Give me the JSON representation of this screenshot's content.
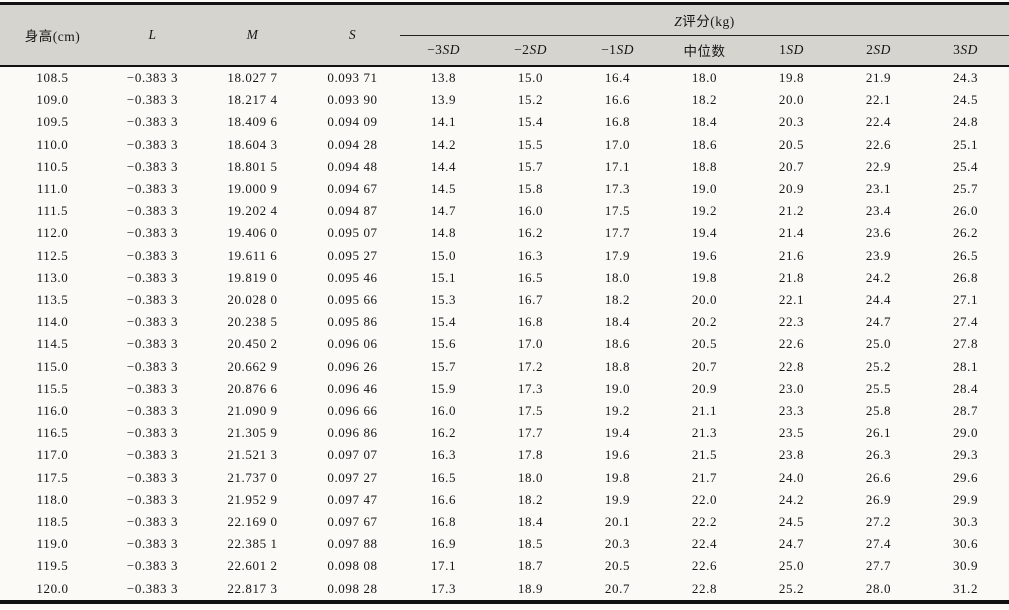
{
  "colors": {
    "header_bg": "#d5d4cf",
    "paper": "#fbfaf6",
    "ink": "#161616",
    "rule": "#111111"
  },
  "table": {
    "headers": {
      "height": "身高(cm)",
      "l": "L",
      "m": "M",
      "s": "S",
      "z_group": {
        "italic_part": "Z",
        "text_part": "评分(kg)"
      },
      "sd_columns": [
        {
          "prefix": "−3",
          "italic": "SD"
        },
        {
          "prefix": "−2",
          "italic": "SD"
        },
        {
          "prefix": "−1",
          "italic": "SD"
        },
        {
          "prefix": "中位数",
          "italic": ""
        },
        {
          "prefix": "1",
          "italic": "SD"
        },
        {
          "prefix": "2",
          "italic": "SD"
        },
        {
          "prefix": "3",
          "italic": "SD"
        }
      ]
    },
    "rows": [
      [
        "108.5",
        "−0.383 3",
        "18.027 7",
        "0.093 71",
        "13.8",
        "15.0",
        "16.4",
        "18.0",
        "19.8",
        "21.9",
        "24.3"
      ],
      [
        "109.0",
        "−0.383 3",
        "18.217 4",
        "0.093 90",
        "13.9",
        "15.2",
        "16.6",
        "18.2",
        "20.0",
        "22.1",
        "24.5"
      ],
      [
        "109.5",
        "−0.383 3",
        "18.409 6",
        "0.094 09",
        "14.1",
        "15.4",
        "16.8",
        "18.4",
        "20.3",
        "22.4",
        "24.8"
      ],
      [
        "110.0",
        "−0.383 3",
        "18.604 3",
        "0.094 28",
        "14.2",
        "15.5",
        "17.0",
        "18.6",
        "20.5",
        "22.6",
        "25.1"
      ],
      [
        "110.5",
        "−0.383 3",
        "18.801 5",
        "0.094 48",
        "14.4",
        "15.7",
        "17.1",
        "18.8",
        "20.7",
        "22.9",
        "25.4"
      ],
      [
        "111.0",
        "−0.383 3",
        "19.000 9",
        "0.094 67",
        "14.5",
        "15.8",
        "17.3",
        "19.0",
        "20.9",
        "23.1",
        "25.7"
      ],
      [
        "111.5",
        "−0.383 3",
        "19.202 4",
        "0.094 87",
        "14.7",
        "16.0",
        "17.5",
        "19.2",
        "21.2",
        "23.4",
        "26.0"
      ],
      [
        "112.0",
        "−0.383 3",
        "19.406 0",
        "0.095 07",
        "14.8",
        "16.2",
        "17.7",
        "19.4",
        "21.4",
        "23.6",
        "26.2"
      ],
      [
        "112.5",
        "−0.383 3",
        "19.611 6",
        "0.095 27",
        "15.0",
        "16.3",
        "17.9",
        "19.6",
        "21.6",
        "23.9",
        "26.5"
      ],
      [
        "113.0",
        "−0.383 3",
        "19.819 0",
        "0.095 46",
        "15.1",
        "16.5",
        "18.0",
        "19.8",
        "21.8",
        "24.2",
        "26.8"
      ],
      [
        "113.5",
        "−0.383 3",
        "20.028 0",
        "0.095 66",
        "15.3",
        "16.7",
        "18.2",
        "20.0",
        "22.1",
        "24.4",
        "27.1"
      ],
      [
        "114.0",
        "−0.383 3",
        "20.238 5",
        "0.095 86",
        "15.4",
        "16.8",
        "18.4",
        "20.2",
        "22.3",
        "24.7",
        "27.4"
      ],
      [
        "114.5",
        "−0.383 3",
        "20.450 2",
        "0.096 06",
        "15.6",
        "17.0",
        "18.6",
        "20.5",
        "22.6",
        "25.0",
        "27.8"
      ],
      [
        "115.0",
        "−0.383 3",
        "20.662 9",
        "0.096 26",
        "15.7",
        "17.2",
        "18.8",
        "20.7",
        "22.8",
        "25.2",
        "28.1"
      ],
      [
        "115.5",
        "−0.383 3",
        "20.876 6",
        "0.096 46",
        "15.9",
        "17.3",
        "19.0",
        "20.9",
        "23.0",
        "25.5",
        "28.4"
      ],
      [
        "116.0",
        "−0.383 3",
        "21.090 9",
        "0.096 66",
        "16.0",
        "17.5",
        "19.2",
        "21.1",
        "23.3",
        "25.8",
        "28.7"
      ],
      [
        "116.5",
        "−0.383 3",
        "21.305 9",
        "0.096 86",
        "16.2",
        "17.7",
        "19.4",
        "21.3",
        "23.5",
        "26.1",
        "29.0"
      ],
      [
        "117.0",
        "−0.383 3",
        "21.521 3",
        "0.097 07",
        "16.3",
        "17.8",
        "19.6",
        "21.5",
        "23.8",
        "26.3",
        "29.3"
      ],
      [
        "117.5",
        "−0.383 3",
        "21.737 0",
        "0.097 27",
        "16.5",
        "18.0",
        "19.8",
        "21.7",
        "24.0",
        "26.6",
        "29.6"
      ],
      [
        "118.0",
        "−0.383 3",
        "21.952 9",
        "0.097 47",
        "16.6",
        "18.2",
        "19.9",
        "22.0",
        "24.2",
        "26.9",
        "29.9"
      ],
      [
        "118.5",
        "−0.383 3",
        "22.169 0",
        "0.097 67",
        "16.8",
        "18.4",
        "20.1",
        "22.2",
        "24.5",
        "27.2",
        "30.3"
      ],
      [
        "119.0",
        "−0.383 3",
        "22.385 1",
        "0.097 88",
        "16.9",
        "18.5",
        "20.3",
        "22.4",
        "24.7",
        "27.4",
        "30.6"
      ],
      [
        "119.5",
        "−0.383 3",
        "22.601 2",
        "0.098 08",
        "17.1",
        "18.7",
        "20.5",
        "22.6",
        "25.0",
        "27.7",
        "30.9"
      ],
      [
        "120.0",
        "−0.383 3",
        "22.817 3",
        "0.098 28",
        "17.3",
        "18.9",
        "20.7",
        "22.8",
        "25.2",
        "28.0",
        "31.2"
      ]
    ]
  }
}
